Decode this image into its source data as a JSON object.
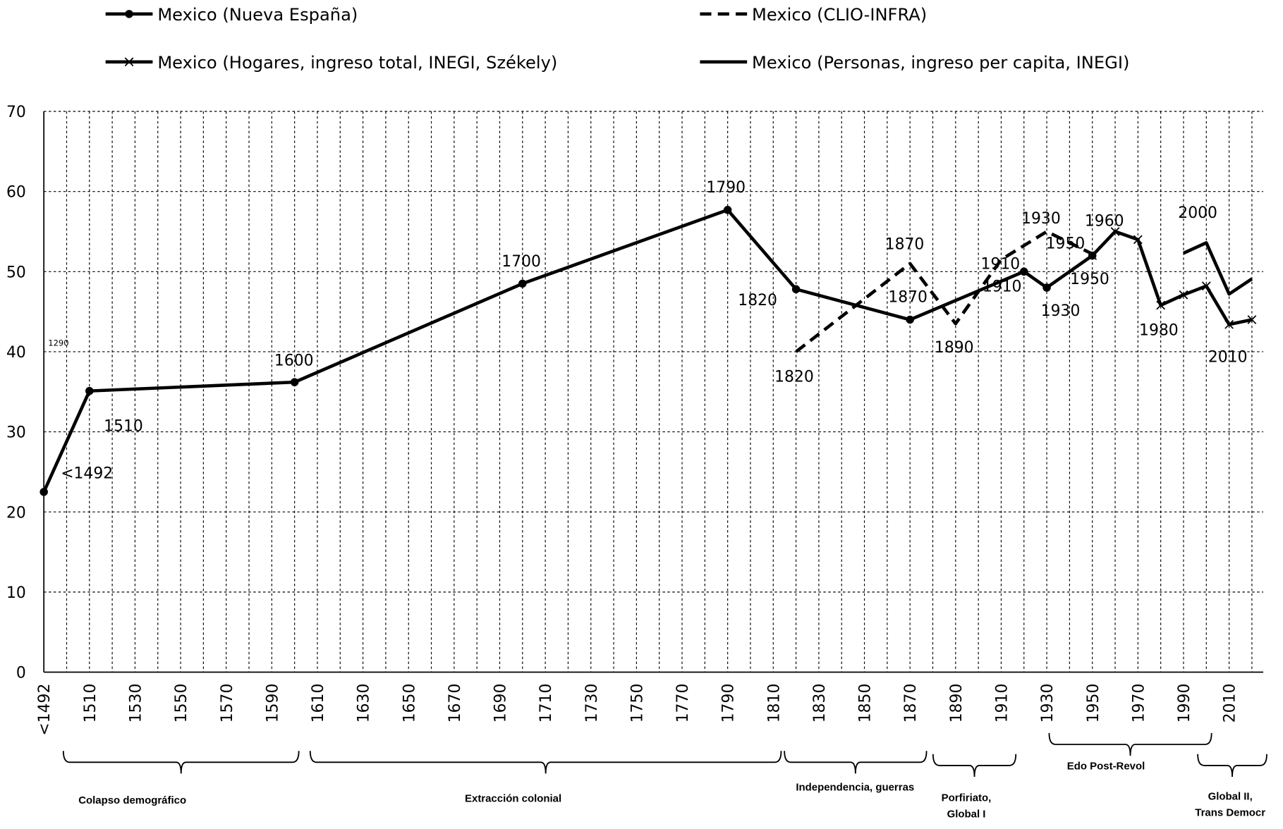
{
  "chart_data": {
    "type": "line",
    "categories": [
      "<1492",
      null,
      "1510",
      null,
      "1530",
      null,
      "1550",
      null,
      "1570",
      null,
      "1590",
      null,
      "1610",
      null,
      "1630",
      null,
      "1650",
      null,
      "1670",
      null,
      "1690",
      null,
      "1710",
      null,
      "1730",
      null,
      "1750",
      null,
      "1770",
      null,
      "1790",
      null,
      "1810",
      null,
      "1830",
      null,
      "1850",
      null,
      "1870",
      null,
      "1890",
      null,
      "1910",
      null,
      "1930",
      null,
      "1950",
      null,
      "1970",
      null,
      "1990",
      null,
      "2010",
      null
    ],
    "series": [
      {
        "name": "Mexico (Nueva España)",
        "color": "#000",
        "style": "solid-dot",
        "values": [
          22.5,
          null,
          35.1,
          null,
          null,
          null,
          null,
          null,
          null,
          null,
          null,
          36.2,
          null,
          null,
          null,
          null,
          null,
          null,
          null,
          null,
          null,
          48.5,
          null,
          null,
          null,
          null,
          null,
          null,
          null,
          null,
          57.7,
          null,
          null,
          47.8,
          null,
          null,
          null,
          null,
          44.0,
          null,
          null,
          null,
          null,
          50.0,
          48.0,
          null,
          52.0,
          null,
          null,
          null,
          null,
          null,
          null,
          null
        ]
      },
      {
        "name": "Mexico (CLIO-INFRA)",
        "color": "#000",
        "style": "dashed",
        "values": [
          null,
          null,
          null,
          null,
          null,
          null,
          null,
          null,
          null,
          null,
          null,
          null,
          null,
          null,
          null,
          null,
          null,
          null,
          null,
          null,
          null,
          null,
          null,
          null,
          null,
          null,
          null,
          null,
          null,
          null,
          null,
          null,
          null,
          40.0,
          null,
          null,
          null,
          null,
          51.0,
          null,
          43.5,
          null,
          51.5,
          null,
          55.0,
          null,
          52.2,
          null,
          null,
          null,
          null,
          null,
          null,
          null
        ]
      },
      {
        "name": "Mexico (Hogares, ingreso total, INEGI, Székely)",
        "color": "#000",
        "style": "solid-x",
        "values": [
          null,
          null,
          null,
          null,
          null,
          null,
          null,
          null,
          null,
          null,
          null,
          null,
          null,
          null,
          null,
          null,
          null,
          null,
          null,
          null,
          null,
          null,
          null,
          null,
          null,
          null,
          null,
          null,
          null,
          null,
          null,
          null,
          null,
          null,
          null,
          null,
          null,
          null,
          null,
          null,
          null,
          null,
          null,
          null,
          null,
          null,
          52.0,
          55.0,
          54.0,
          45.8,
          47.1,
          48.2,
          43.4,
          44.0
        ]
      },
      {
        "name": "Mexico (Personas, ingreso per capita, INEGI)",
        "color": "#000",
        "style": "solid",
        "values": [
          null,
          null,
          null,
          null,
          null,
          null,
          null,
          null,
          null,
          null,
          null,
          null,
          null,
          null,
          null,
          null,
          null,
          null,
          null,
          null,
          null,
          null,
          null,
          null,
          null,
          null,
          null,
          null,
          null,
          null,
          null,
          null,
          null,
          null,
          null,
          null,
          null,
          null,
          null,
          null,
          null,
          null,
          null,
          null,
          null,
          null,
          null,
          null,
          null,
          null,
          52.3,
          53.6,
          47.2,
          49.1
        ]
      }
    ],
    "span_gaps": true,
    "ylim": [
      0,
      70
    ],
    "yticks": [
      0,
      10,
      20,
      30,
      40,
      50,
      60,
      70
    ],
    "grid": true,
    "annotations": [
      "1290",
      "<1492",
      "1510",
      "1600",
      "1700",
      "1790",
      "1820",
      "1870",
      "1820",
      "1870",
      "1890",
      "1910",
      "1910",
      "1930",
      "1930",
      "1950",
      "1950",
      "1960",
      "1980",
      "2000",
      "2010"
    ],
    "periods": [
      [
        "Colapso demográfico"
      ],
      [
        "Extracción colonial"
      ],
      [
        "Independencia, guerras"
      ],
      [
        "Porfiriato,",
        "Global I"
      ],
      [
        "Edo Post-Revol"
      ],
      [
        "Global II,",
        "Trans Democr"
      ]
    ]
  }
}
